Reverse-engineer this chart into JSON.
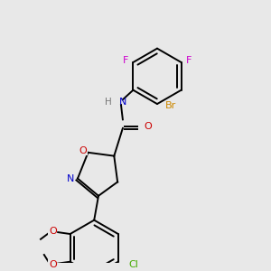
{
  "background_color": "#e8e8e8",
  "figsize": [
    3.0,
    3.0
  ],
  "dpi": 100,
  "lw": 1.4,
  "font_size": 7.5,
  "colors": {
    "bond": "#000000",
    "F": "#cc00cc",
    "Br": "#cc8800",
    "N": "#0000cc",
    "O": "#cc0000",
    "Cl": "#44aa00",
    "H": "#888888"
  }
}
